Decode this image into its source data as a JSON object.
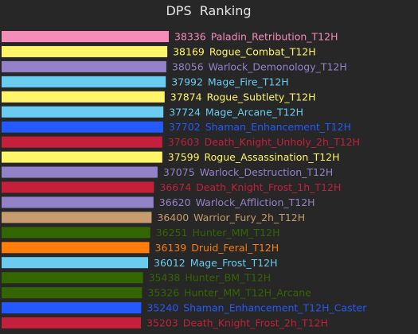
{
  "chart_data": {
    "type": "bar",
    "orientation": "horizontal",
    "title": "DPS  Ranking",
    "grid": false,
    "categories": [
      "Paladin_Retribution_T12H",
      "Rogue_Combat_T12H",
      "Warlock_Demonology_T12H",
      "Mage_Fire_T12H",
      "Rogue_Subtlety_T12H",
      "Mage_Arcane_T12H",
      "Shaman_Enhancement_T12H",
      "Death_Knight_Unholy_2h_T12H",
      "Rogue_Assassination_T12H",
      "Warlock_Destruction_T12H",
      "Death_Knight_Frost_1h_T12H",
      "Warlock_Affliction_T12H",
      "Warrior_Fury_2h_T12H",
      "Hunter_MM_T12H",
      "Druid_Feral_T12H",
      "Mage_Frost_T12H",
      "Hunter_BM_T12H",
      "Hunter_MM_T12H_Arcane",
      "Shaman_Enhancement_T12H_Caster",
      "Death_Knight_Frost_2h_T12H"
    ],
    "values": [
      38336,
      38169,
      38056,
      37992,
      37874,
      37724,
      37702,
      37603,
      37599,
      37075,
      36674,
      36620,
      36400,
      36251,
      36139,
      36012,
      35438,
      35326,
      35240,
      35203
    ],
    "value_labels": [
      "38336",
      "38169",
      "38056",
      "37992",
      "37874",
      "37724",
      "37702",
      "37603",
      "37599",
      "37075",
      "36674",
      "36620",
      "36400",
      "36251",
      "36139",
      "36012",
      "35438",
      "35326",
      "35240",
      "35203"
    ],
    "colors": [
      "#f58cba",
      "#fff569",
      "#9482c9",
      "#69ccf0",
      "#fff569",
      "#69ccf0",
      "#2459ff",
      "#c41f3b",
      "#fff569",
      "#9482c9",
      "#c41f3b",
      "#9482c9",
      "#c79c6e",
      "#336600",
      "#ff7d0a",
      "#69ccf0",
      "#336600",
      "#336600",
      "#2459ff",
      "#c41f3b"
    ],
    "xlim": [
      0,
      38336
    ]
  }
}
